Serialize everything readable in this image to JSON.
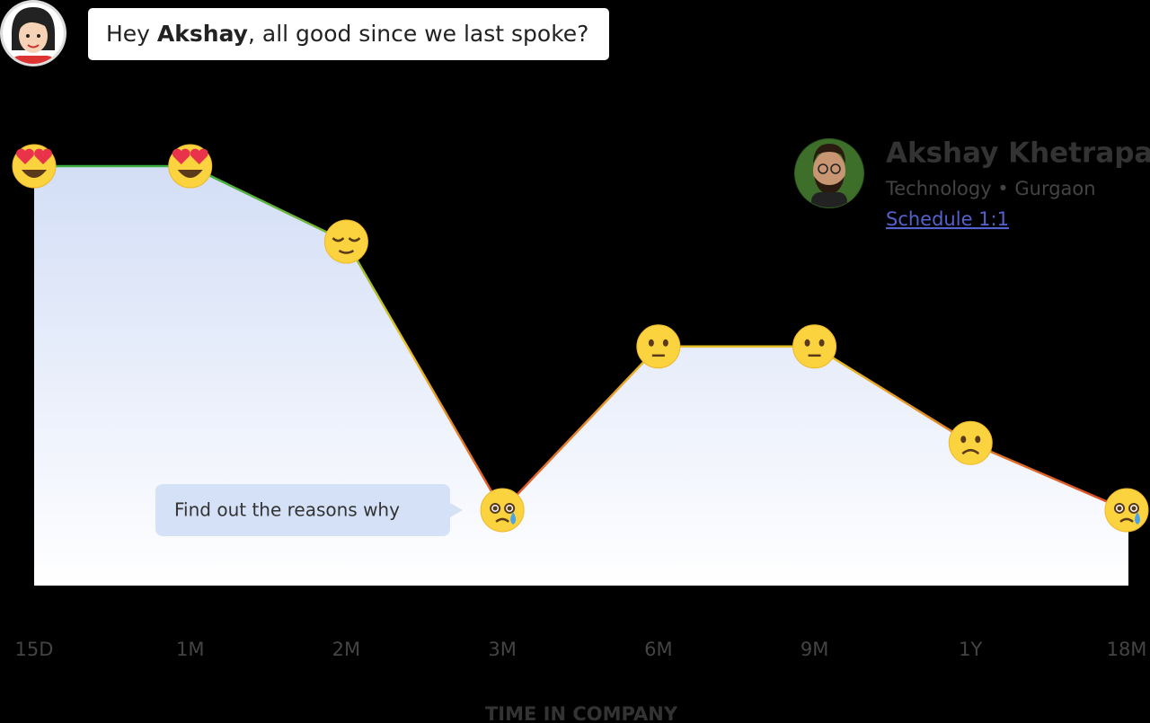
{
  "chat": {
    "parts": [
      "Hey ",
      "Akshay",
      ", all good since we last spoke?"
    ]
  },
  "profile": {
    "name": "Akshay Khetrapal",
    "meta": "Technology • Gurgaon",
    "action": "Schedule 1:1"
  },
  "chart_data": {
    "type": "mood-line",
    "categories": [
      "15D",
      "1M",
      "2M",
      "3M",
      "6M",
      "9M",
      "1Y",
      "18M"
    ],
    "values": [
      100,
      100,
      82,
      18,
      57,
      57,
      34,
      18
    ],
    "ylim": [
      0,
      100
    ],
    "x_label": "TIME IN COMPANY",
    "annotation": "Find out the reasons why",
    "line_colors": [
      "#3cb043",
      "#e8c32a",
      "#d9432b"
    ],
    "area_colors": [
      "#d3def6",
      "#ffffff"
    ]
  }
}
